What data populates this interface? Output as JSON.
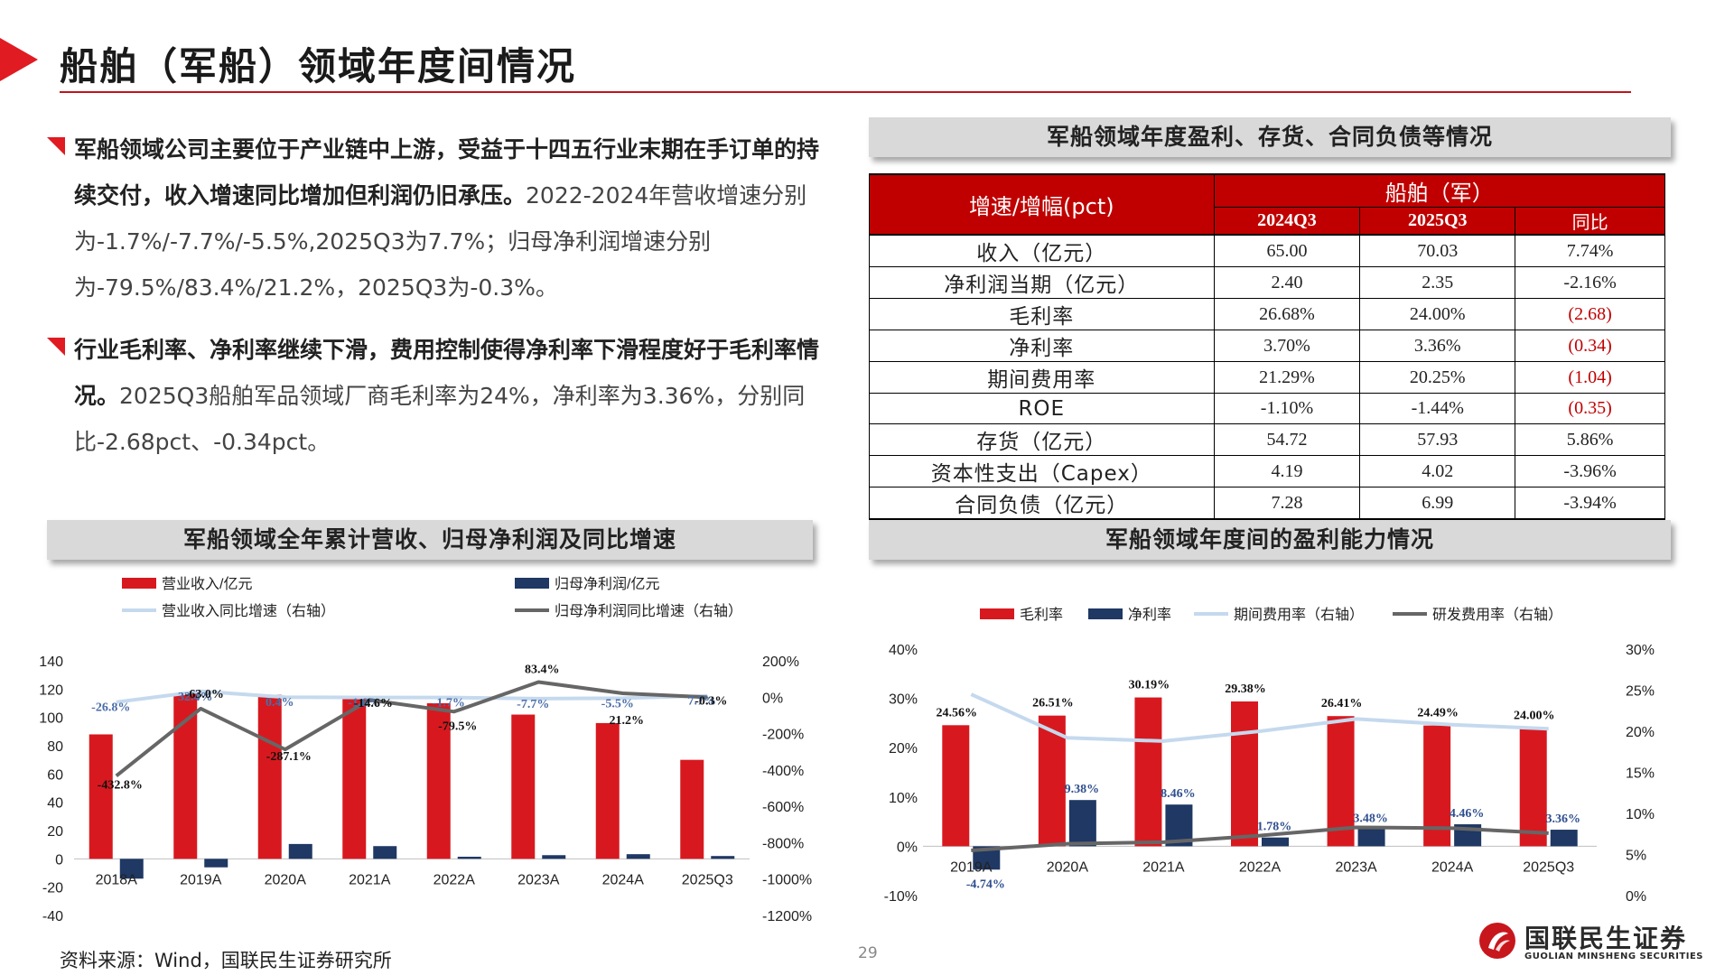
{
  "page": {
    "title": "船舶（军船）领域年度间情况",
    "source": "资料来源：Wind，国联民生证券研究所",
    "page_number": "29",
    "accent_color": "#e01b22"
  },
  "bullets": [
    {
      "lead": "军船领域公司主要位于产业链中上游，受益于十四五行业末期在手订单的持续交付，收入增速同比增加但利润仍旧承压。",
      "body": "2022-2024年营收增速分别为-1.7%/-7.7%/-5.5%,2025Q3为7.7%；归母净利润增速分别为-79.5%/83.4%/21.2%，2025Q3为-0.3%。"
    },
    {
      "lead": "行业毛利率、净利率继续下滑，费用控制使得净利率下滑程度好于毛利率情况。",
      "body": "2025Q3船舶军品领域厂商毛利率为24%，净利率为3.36%，分别同比-2.68pct、-0.34pct。"
    }
  ],
  "table_section": {
    "title": "军船领域年度盈利、存货、合同负债等情况",
    "header_label": "增速/增幅(pct)",
    "group_label": "船舶（军）",
    "columns": [
      "2024Q3",
      "2025Q3",
      "同比"
    ],
    "rows": [
      {
        "label": "收入（亿元）",
        "v1": "65.00",
        "v2": "70.03",
        "chg": "7.74%",
        "neg": false
      },
      {
        "label": "净利润当期（亿元）",
        "v1": "2.40",
        "v2": "2.35",
        "chg": "-2.16%",
        "neg": false
      },
      {
        "label": "毛利率",
        "v1": "26.68%",
        "v2": "24.00%",
        "chg": "(2.68)",
        "neg": true
      },
      {
        "label": "净利率",
        "v1": "3.70%",
        "v2": "3.36%",
        "chg": "(0.34)",
        "neg": true
      },
      {
        "label": "期间费用率",
        "v1": "21.29%",
        "v2": "20.25%",
        "chg": "(1.04)",
        "neg": true
      },
      {
        "label": "ROE",
        "v1": "-1.10%",
        "v2": "-1.44%",
        "chg": "(0.35)",
        "neg": true
      },
      {
        "label": "存货（亿元）",
        "v1": "54.72",
        "v2": "57.93",
        "chg": "5.86%",
        "neg": false
      },
      {
        "label": "资本性支出（Capex）",
        "v1": "4.19",
        "v2": "4.02",
        "chg": "-3.96%",
        "neg": false
      },
      {
        "label": "合同负债（亿元）",
        "v1": "7.28",
        "v2": "6.99",
        "chg": "-3.94%",
        "neg": false
      }
    ]
  },
  "chart_data": [
    {
      "type": "bar",
      "title": "军船领域全年累计营收、归母净利润及同比增速",
      "categories": [
        "2018A",
        "2019A",
        "2020A",
        "2021A",
        "2022A",
        "2023A",
        "2024A",
        "2025Q3"
      ],
      "ylim": [
        -40,
        140
      ],
      "yticks": [
        "140",
        "120",
        "100",
        "80",
        "60",
        "40",
        "20",
        "0",
        "-20",
        "-40"
      ],
      "y2lim": [
        -1200,
        200
      ],
      "y2ticks": [
        "200%",
        "0%",
        "-200%",
        "-400%",
        "-600%",
        "-800%",
        "-1000%",
        "-1200%"
      ],
      "grid": false,
      "legend_position": "top",
      "series": [
        {
          "name": "营业收入/亿元",
          "type": "bar",
          "axis": "left",
          "color": "#d7191f",
          "values": [
            88,
            117,
            116,
            113,
            110,
            102,
            96,
            70
          ]
        },
        {
          "name": "归母净利润/亿元",
          "type": "bar",
          "axis": "left",
          "color": "#1f3864",
          "values": [
            -14,
            -6,
            10.5,
            9,
            1.5,
            2.6,
            3.3,
            2
          ]
        },
        {
          "name": "营业收入同比增速（右轴）",
          "type": "line",
          "axis": "right",
          "color": "#c5d9ee",
          "values": [
            -26.8,
            32.4,
            0.4,
            -1.6,
            -1.7,
            -7.7,
            -5.5,
            7.7
          ],
          "labels": [
            "-26.8%",
            "32.4%",
            "0.4%",
            "-1.6%",
            "-1.7%",
            "-7.7%",
            "-5.5%",
            "7.7%"
          ]
        },
        {
          "name": "归母净利润同比增速（右轴）",
          "type": "line",
          "axis": "right",
          "color": "#666666",
          "values": [
            -432.8,
            -63.0,
            -287.1,
            -14.6,
            -79.5,
            83.4,
            21.2,
            -0.3
          ],
          "labels": [
            "-432.8%",
            "-63.0%",
            "-287.1%",
            "-14.6%",
            "-79.5%",
            "83.4%",
            "21.2%",
            "-0.3%"
          ]
        }
      ]
    },
    {
      "type": "bar",
      "title": "军船领域年度间的盈利能力情况",
      "categories": [
        "2019A",
        "2020A",
        "2021A",
        "2022A",
        "2023A",
        "2024A",
        "2025Q3"
      ],
      "ylim": [
        -10,
        40
      ],
      "yticks": [
        "40%",
        "30%",
        "20%",
        "10%",
        "0%",
        "-10%"
      ],
      "y2lim": [
        0,
        30
      ],
      "y2ticks": [
        "30%",
        "25%",
        "20%",
        "15%",
        "10%",
        "5%",
        "0%"
      ],
      "grid": false,
      "legend_position": "top",
      "series": [
        {
          "name": "毛利率",
          "type": "bar",
          "axis": "left",
          "color": "#d7191f",
          "values": [
            24.56,
            26.51,
            30.19,
            29.38,
            26.41,
            24.49,
            24.0
          ],
          "labels": [
            "24.56%",
            "26.51%",
            "30.19%",
            "29.38%",
            "26.41%",
            "24.49%",
            "24.00%"
          ]
        },
        {
          "name": "净利率",
          "type": "bar",
          "axis": "left",
          "color": "#1f3864",
          "values": [
            -4.74,
            9.38,
            8.46,
            1.78,
            3.48,
            4.46,
            3.36
          ],
          "labels": [
            "-4.74%",
            "9.38%",
            "8.46%",
            "1.78%",
            "3.48%",
            "4.46%",
            "3.36%"
          ]
        },
        {
          "name": "期间费用率（右轴）",
          "type": "line",
          "axis": "right",
          "color": "#c5d9ee",
          "values": [
            24.5,
            19.2,
            18.8,
            20.0,
            21.5,
            20.8,
            20.3
          ]
        },
        {
          "name": "研发费用率（右轴）",
          "type": "line",
          "axis": "right",
          "color": "#666666",
          "values": [
            5.5,
            6.3,
            6.5,
            7.3,
            8.3,
            8.2,
            7.6
          ]
        }
      ]
    }
  ],
  "logo": {
    "name_cn": "国联民生证券",
    "name_en": "GUOLIAN MINSHENG SECURITIES"
  }
}
